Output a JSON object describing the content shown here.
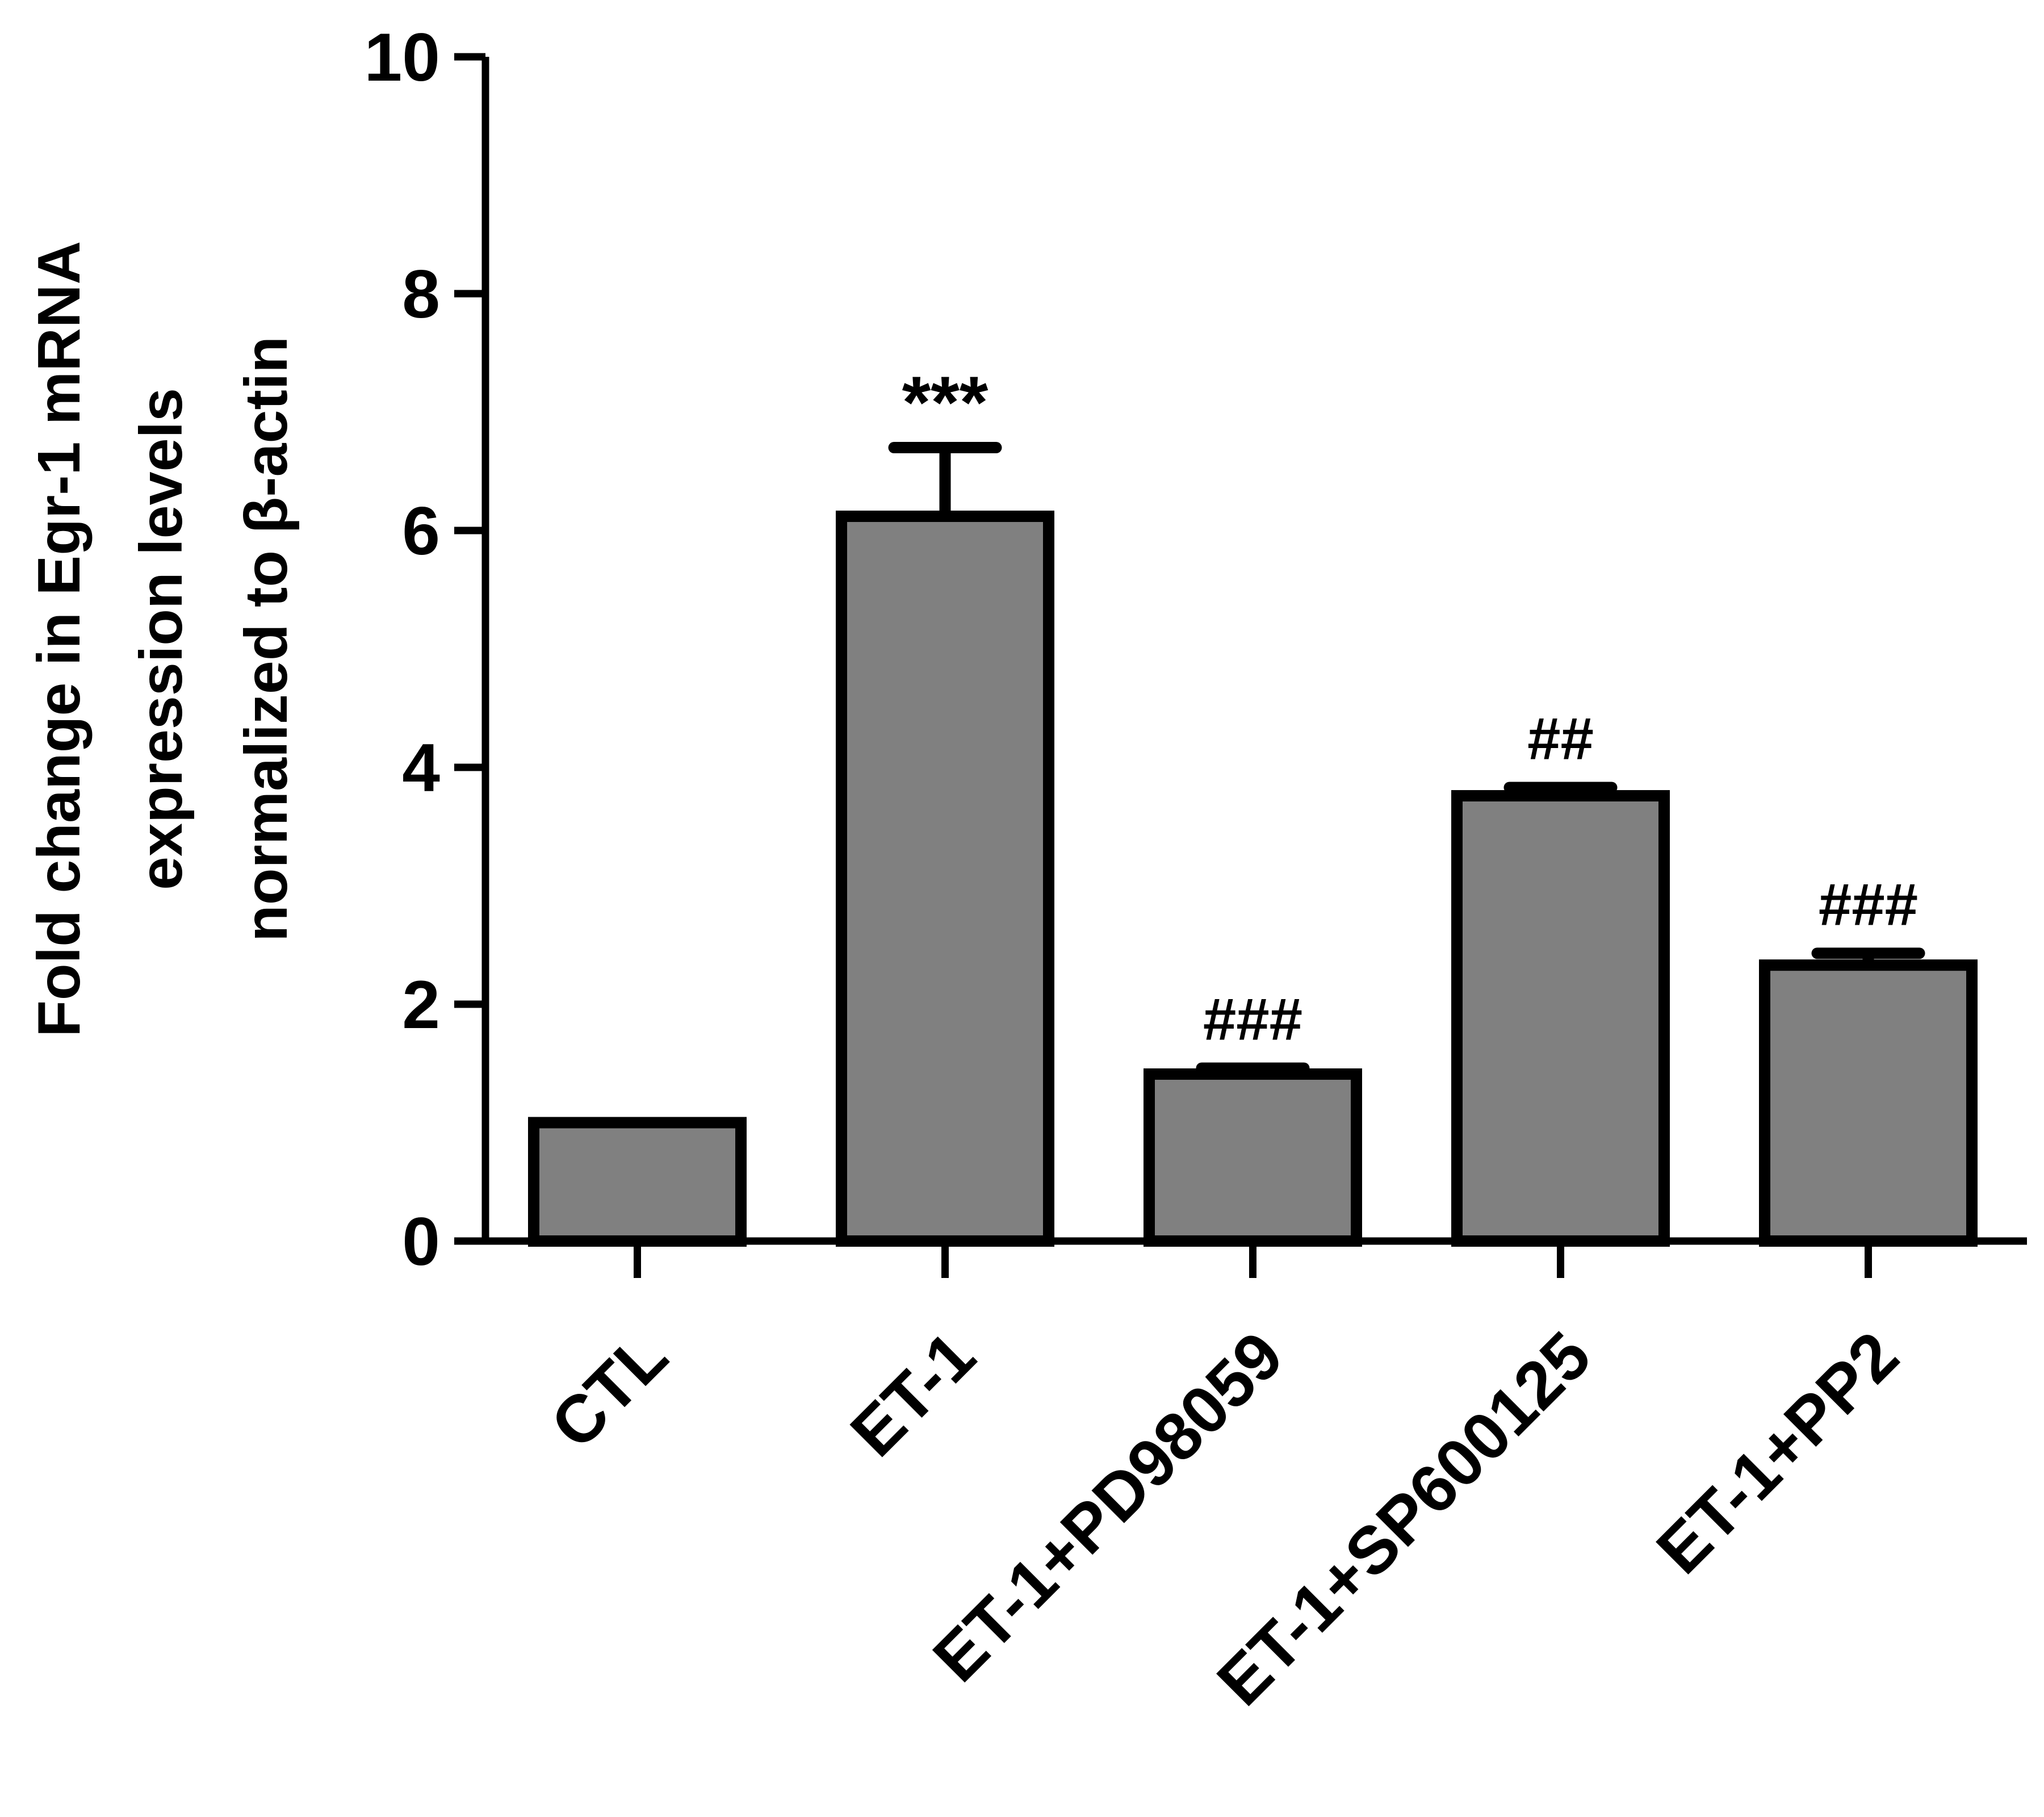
{
  "chart_data": {
    "type": "bar",
    "categories": [
      "CTL",
      "ET-1",
      "ET-1+PD98059",
      "ET-1+SP600125",
      "ET-1+PP2"
    ],
    "values": [
      1.0,
      6.12,
      1.41,
      3.76,
      2.33
    ],
    "error_upper": [
      0.0,
      0.58,
      0.05,
      0.07,
      0.1
    ],
    "annotations": [
      "",
      "***",
      "###",
      "##",
      "###"
    ],
    "ylabel_lines": [
      "Fold change in Egr-1 mRNA",
      "expression levels",
      "normalized to β-actin"
    ],
    "ylim": [
      0,
      10
    ],
    "yticks": [
      "0",
      "2",
      "4",
      "6",
      "8",
      "10"
    ],
    "bar_color": "#808080",
    "edge_color": "#000000"
  }
}
